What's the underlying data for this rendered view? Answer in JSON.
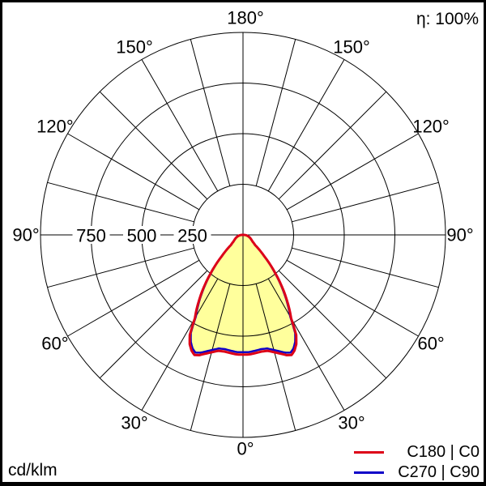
{
  "header": {
    "efficiency": "η: 100%"
  },
  "footer": {
    "units": "cd/klm"
  },
  "legend": {
    "items": [
      {
        "label": "C180 | C0",
        "color": "#dd0018"
      },
      {
        "label": "C270 | C90",
        "color": "#0f00c8"
      }
    ]
  },
  "chart_data": {
    "type": "polar",
    "subtype": "luminous-intensity-distribution",
    "units": "cd/klm",
    "efficiency_percent": 100,
    "angle_labels": [
      "0°",
      "30°",
      "60°",
      "90°",
      "120°",
      "150°",
      "180°"
    ],
    "angle_grid_step_deg": 15,
    "radial_ticks": [
      250,
      500,
      750
    ],
    "radial_max": 1000,
    "grid_color": "#000000",
    "fill_color": "#ffff9c",
    "legend_position": "bottom-right",
    "series": [
      {
        "name": "C180 | C0",
        "color": "#dd0018",
        "width": 3,
        "gamma_deg": [
          0,
          3,
          6,
          9,
          12,
          15,
          18,
          20,
          22,
          24,
          26,
          28,
          30,
          33,
          36,
          40,
          45,
          50,
          55,
          60,
          65,
          70,
          75,
          80,
          85,
          90
        ],
        "cd_per_klm": [
          591,
          591,
          587,
          583,
          585,
          600,
          618,
          632,
          640,
          625,
          600,
          560,
          475,
          410,
          342,
          250,
          148,
          78,
          58,
          48,
          41,
          34,
          27,
          20,
          14,
          0
        ]
      },
      {
        "name": "C270 | C90",
        "color": "#0f00c8",
        "width": 2.5,
        "gamma_deg": [
          0,
          3,
          6,
          9,
          12,
          15,
          18,
          20,
          22,
          24,
          26,
          28,
          30,
          33,
          36,
          40,
          45,
          50,
          55,
          60,
          65,
          70,
          75,
          80,
          85,
          90
        ],
        "cd_per_klm": [
          579,
          579,
          575,
          571,
          573,
          588,
          606,
          619,
          627,
          613,
          588,
          549,
          466,
          402,
          335,
          245,
          145,
          76,
          57,
          47,
          40,
          33,
          26,
          20,
          14,
          0
        ]
      }
    ]
  }
}
